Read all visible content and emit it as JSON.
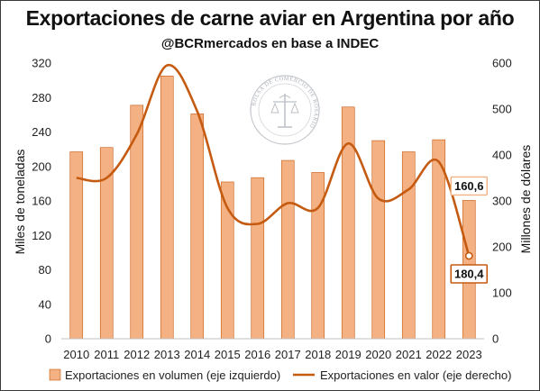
{
  "chart_data": {
    "type": "bar",
    "title": "Exportaciones de carne aviar en Argentina por año",
    "subtitle": "@BCRmercados en base a INDEC",
    "categories": [
      "2010",
      "2011",
      "2012",
      "2013",
      "2014",
      "2015",
      "2016",
      "2017",
      "2018",
      "2019",
      "2020",
      "2021",
      "2022",
      "2023"
    ],
    "series": [
      {
        "name": "Exportaciones en volumen (eje izquierdo)",
        "type": "bar",
        "axis": "left",
        "color": "#f4b183",
        "edge_color": "#c55a11",
        "values": [
          217,
          222,
          271,
          305,
          261,
          182,
          187,
          207,
          193,
          269,
          230,
          217,
          231,
          160.6
        ]
      },
      {
        "name": "Exportaciones en valor (eje derecho)",
        "type": "line",
        "axis": "right",
        "color": "#c55a11",
        "values": [
          350,
          350,
          445,
          595,
          495,
          285,
          250,
          295,
          285,
          425,
          305,
          325,
          385,
          180.4
        ]
      }
    ],
    "ylabel_left": "Miles de toneladas",
    "ylabel_right": "Millones de dólares",
    "ylim_left": [
      0,
      320
    ],
    "ylim_right": [
      0,
      600
    ],
    "yticks_left": [
      "0",
      "40",
      "80",
      "120",
      "160",
      "200",
      "240",
      "280",
      "320"
    ],
    "yticks_right": [
      "0",
      "100",
      "200",
      "300",
      "400",
      "500",
      "600"
    ],
    "annotations": {
      "bar_last": "160,6",
      "line_last": "180,4"
    },
    "legend_position": "bottom",
    "grid": false
  },
  "watermark": {
    "text": "BOLSA DE COMERCIO DE ROSARIO"
  }
}
